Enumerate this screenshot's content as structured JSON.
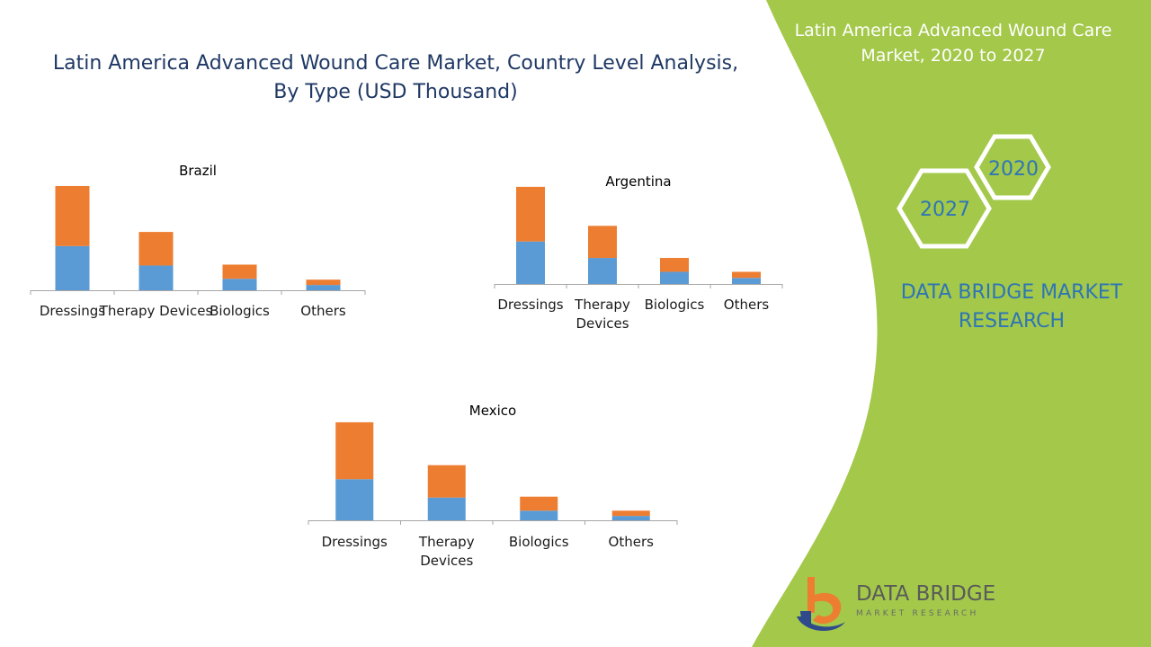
{
  "title": {
    "line1": "Latin America Advanced Wound Care Market, Country Level Analysis,",
    "line2": "By Type (USD Thousand)"
  },
  "side_panel": {
    "title_line1": "Latin America Advanced Wound Care",
    "title_line2": "Market, 2020 to 2027",
    "year_start": "2020",
    "year_end": "2027",
    "brand_line1": "DATA BRIDGE MARKET",
    "brand_line2": "RESEARCH",
    "logo_name": "DATA BRIDGE",
    "logo_sub": "MARKET RESEARCH"
  },
  "colors": {
    "series_lower": "#5b9bd5",
    "series_upper": "#ed7d31",
    "panel_green": "#a3c84a",
    "brand_blue": "#2e75b6"
  },
  "chart_data": [
    {
      "type": "bar",
      "stacked": true,
      "title": "Brazil",
      "categories": [
        [
          "Dressings"
        ],
        [
          "Therapy Devices"
        ],
        [
          "Biologics"
        ],
        [
          "Others"
        ]
      ],
      "series": [
        {
          "name": "lower",
          "values": [
            50,
            28,
            13,
            6
          ]
        },
        {
          "name": "upper",
          "values": [
            68,
            38,
            16,
            6
          ]
        }
      ],
      "ylim": [
        0,
        120
      ]
    },
    {
      "type": "bar",
      "stacked": true,
      "title": "Argentina",
      "categories": [
        [
          "Dressings"
        ],
        [
          "Therapy",
          "Devices"
        ],
        [
          "Biologics"
        ],
        [
          "Others"
        ]
      ],
      "series": [
        {
          "name": "lower",
          "values": [
            49,
            30,
            14,
            7
          ]
        },
        {
          "name": "upper",
          "values": [
            63,
            37,
            16,
            7
          ]
        }
      ],
      "ylim": [
        0,
        115
      ]
    },
    {
      "type": "bar",
      "stacked": true,
      "title": "Mexico",
      "categories": [
        [
          "Dressings"
        ],
        [
          "Therapy",
          "Devices"
        ],
        [
          "Biologics"
        ],
        [
          "Others"
        ]
      ],
      "series": [
        {
          "name": "lower",
          "values": [
            47,
            26,
            11,
            5
          ]
        },
        {
          "name": "upper",
          "values": [
            65,
            37,
            16,
            6
          ]
        }
      ],
      "ylim": [
        0,
        115
      ]
    }
  ]
}
